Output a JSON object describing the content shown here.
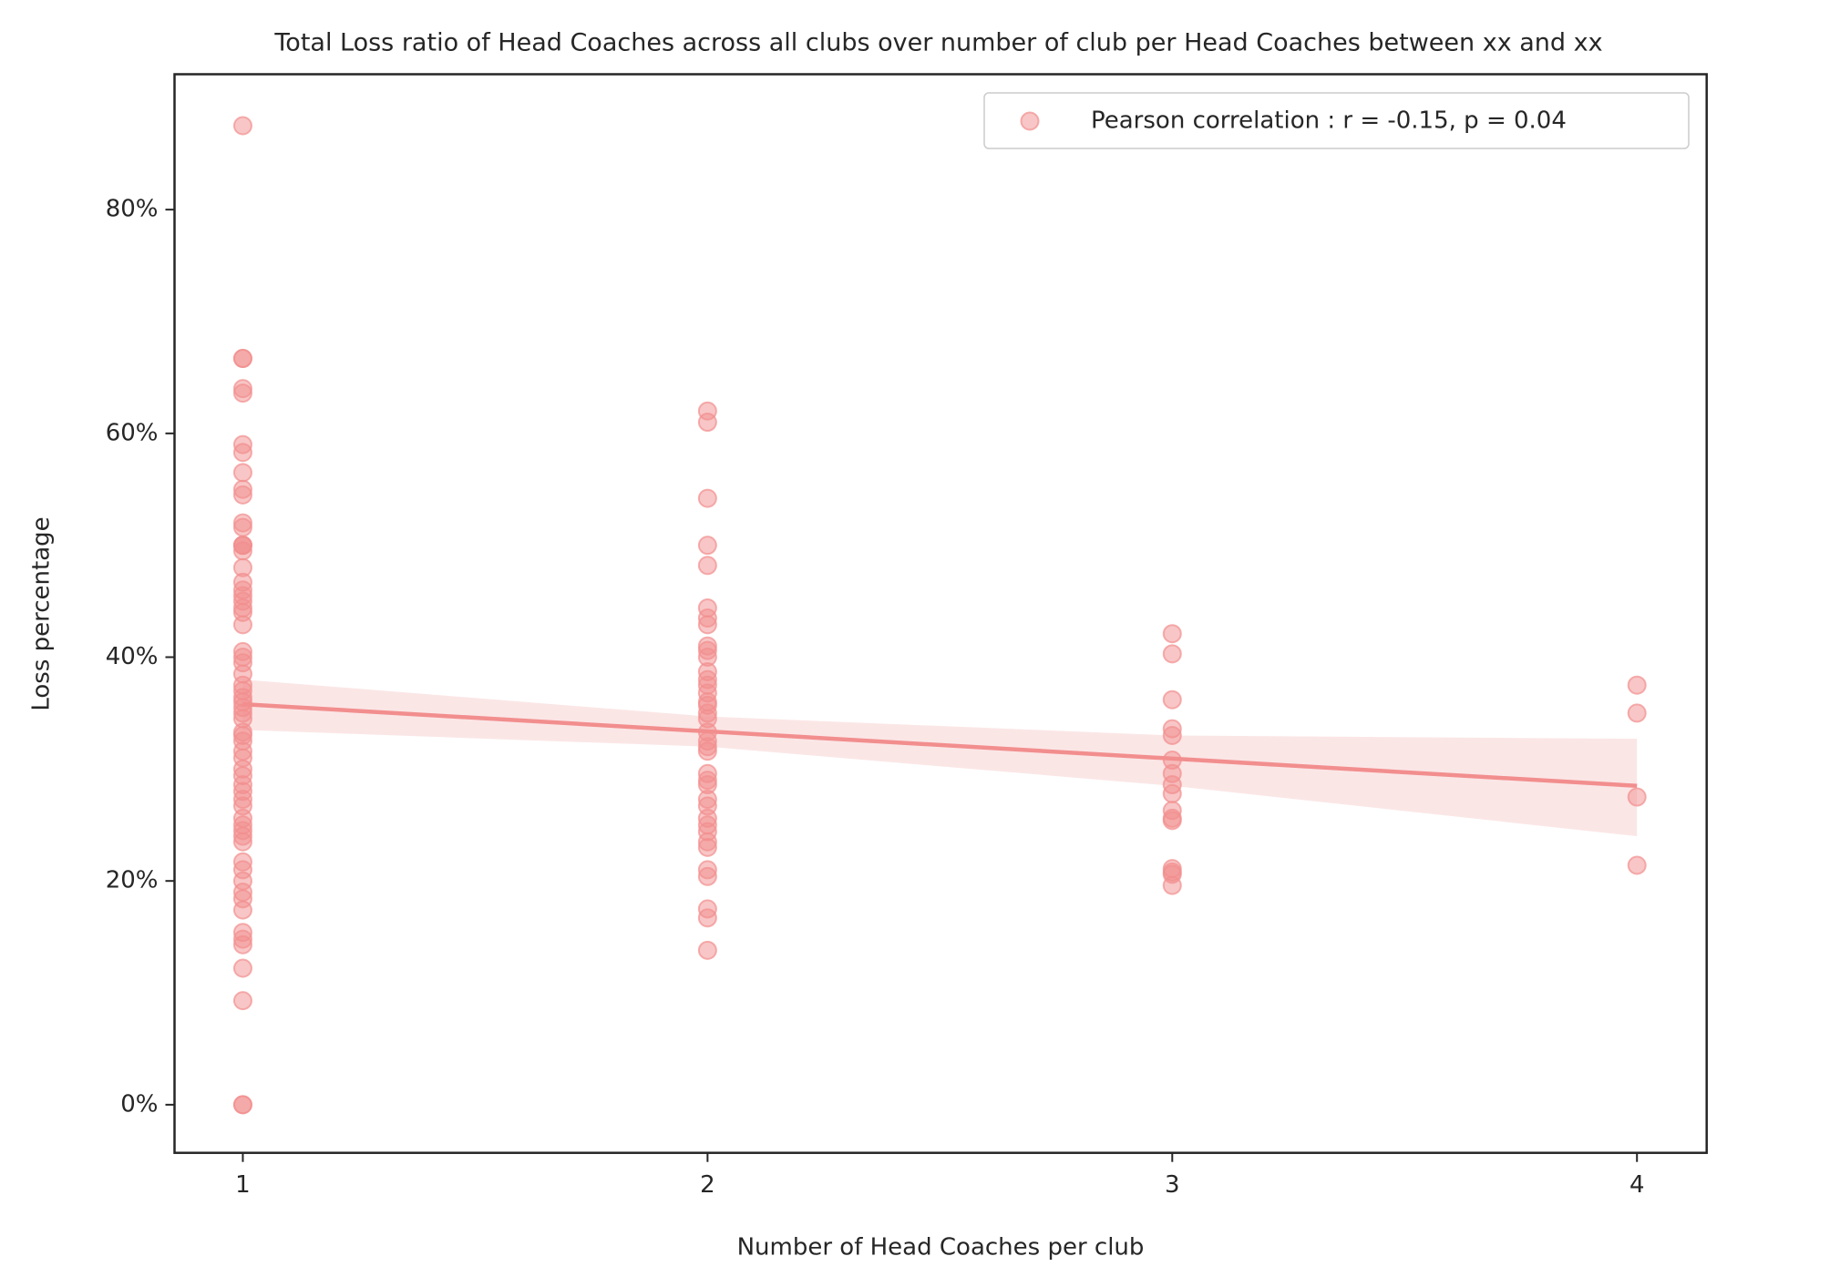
{
  "chart_data": {
    "type": "scatter",
    "title": "Total Loss ratio of Head Coaches across all clubs over number of club per Head Coaches between xx and xx",
    "xlabel": "Number of Head Coaches per club",
    "ylabel": "Loss percentage",
    "xlim": [
      0.853,
      4.15
    ],
    "ylim": [
      -4.3,
      92.1
    ],
    "xticks": [
      1,
      2,
      3,
      4
    ],
    "yticks": [
      {
        "value": 0,
        "label": "0%"
      },
      {
        "value": 20,
        "label": "20%"
      },
      {
        "value": 40,
        "label": "40%"
      },
      {
        "value": 60,
        "label": "60%"
      },
      {
        "value": 80,
        "label": "80%"
      }
    ],
    "legend": "upper right",
    "series": [
      {
        "name": "Pearson correlation : r = -0.15, p = 0.04",
        "color": "#f28e8e",
        "x": [
          1,
          1,
          1,
          1,
          1,
          1,
          1,
          1,
          1,
          1,
          1,
          1,
          1,
          1,
          1,
          1,
          1,
          1,
          1,
          1,
          1,
          1,
          1,
          1,
          1,
          1,
          1,
          1,
          1,
          1,
          1,
          1,
          1,
          1,
          1,
          1,
          1,
          1,
          1,
          1,
          1,
          1,
          1,
          1,
          1,
          1,
          1,
          1,
          1,
          1,
          1,
          1,
          1,
          1,
          1,
          1,
          1,
          1,
          1,
          1,
          1,
          1,
          1,
          1,
          2,
          2,
          2,
          2,
          2,
          2,
          2,
          2,
          2,
          2,
          2,
          2,
          2,
          2,
          2,
          2,
          2,
          2,
          2,
          2,
          2,
          2,
          2,
          2,
          2,
          2,
          2,
          2,
          2,
          2,
          2,
          2,
          2,
          2,
          2,
          2,
          2,
          2,
          3,
          3,
          3,
          3,
          3,
          3,
          3,
          3,
          3,
          3,
          3,
          3,
          3,
          3,
          3,
          3,
          4,
          4,
          4,
          4
        ],
        "values": [
          87.5,
          66.7,
          66.7,
          64,
          63.6,
          59,
          58.3,
          56.5,
          55,
          54.5,
          52,
          51.6,
          50,
          50,
          50,
          49.5,
          48,
          46.7,
          46,
          45.5,
          45,
          44.4,
          44,
          42.9,
          40.5,
          40,
          39.5,
          38.5,
          37.5,
          37,
          36.4,
          36,
          35.5,
          35,
          34.5,
          33.3,
          33,
          32.5,
          31.6,
          31,
          30,
          29.4,
          28.6,
          28,
          27.3,
          26.7,
          25.6,
          25,
          24.5,
          24,
          23.5,
          21.7,
          21,
          20,
          19,
          18.4,
          17.4,
          15.4,
          14.8,
          14.3,
          12.2,
          9.3,
          0,
          0,
          62,
          61,
          54.2,
          50,
          48.2,
          44.4,
          43.5,
          42.9,
          41,
          40.6,
          40,
          38.7,
          38,
          37.5,
          36.8,
          36,
          35.7,
          35,
          34.5,
          33.3,
          32.5,
          32,
          31.6,
          29.6,
          29,
          28.6,
          27.3,
          26.7,
          25.6,
          25,
          24.4,
          23.5,
          23,
          21,
          20.4,
          17.5,
          16.7,
          13.8,
          42.1,
          40.3,
          36.2,
          33.6,
          33,
          30.8,
          29.6,
          28.6,
          27.8,
          26.3,
          25.6,
          25.4,
          21.1,
          20.8,
          20.6,
          19.6,
          37.5,
          35,
          27.5,
          21.4
        ]
      }
    ],
    "fit": {
      "color": "#f28e8e",
      "x": [
        1,
        4
      ],
      "values": [
        35.8,
        28.5
      ]
    },
    "band": {
      "color": "#fbe6e6",
      "x": [
        1,
        2,
        3,
        4
      ],
      "lower": [
        33.5,
        32,
        28.5,
        24
      ],
      "upper": [
        38,
        34.7,
        33,
        32.7
      ]
    }
  }
}
